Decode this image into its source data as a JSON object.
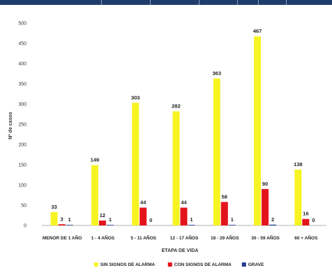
{
  "chart_data": {
    "type": "bar",
    "title": "",
    "xlabel": "ETAPA DE VIDA",
    "ylabel": "Nº de casos",
    "ylim": [
      0,
      500
    ],
    "yticks": [
      0,
      50,
      100,
      150,
      200,
      250,
      300,
      350,
      400,
      450,
      500
    ],
    "grid": false,
    "legend_position": "bottom",
    "categories": [
      "MENOR DE 1 AÑO",
      "1 - 4 AÑOS",
      "5 - 11 AÑOS",
      "12 - 17 AÑOS",
      "18 - 29 AÑOS",
      "30 - 59 AÑOS",
      "60 + AÑOS"
    ],
    "series": [
      {
        "name": "SIN SIGNOS DE ALARMA",
        "color": "#f7f423",
        "values": [
          33,
          149,
          303,
          282,
          363,
          467,
          138
        ]
      },
      {
        "name": "CON SIGNOS DE ALARMA",
        "color": "#e3141c",
        "values": [
          3,
          12,
          44,
          44,
          58,
          90,
          16
        ]
      },
      {
        "name": "GRAVE",
        "color": "#1f3d8c",
        "values": [
          1,
          1,
          0,
          1,
          1,
          2,
          0
        ]
      }
    ],
    "data_labels": [
      [
        "33",
        "3",
        "1"
      ],
      [
        "149",
        "12",
        "1"
      ],
      [
        "303",
        "44",
        "0"
      ],
      [
        "282",
        "44",
        "1"
      ],
      [
        "363",
        "58",
        "1"
      ],
      [
        "467",
        "90",
        "2"
      ],
      [
        "138",
        "16",
        "0"
      ]
    ]
  }
}
